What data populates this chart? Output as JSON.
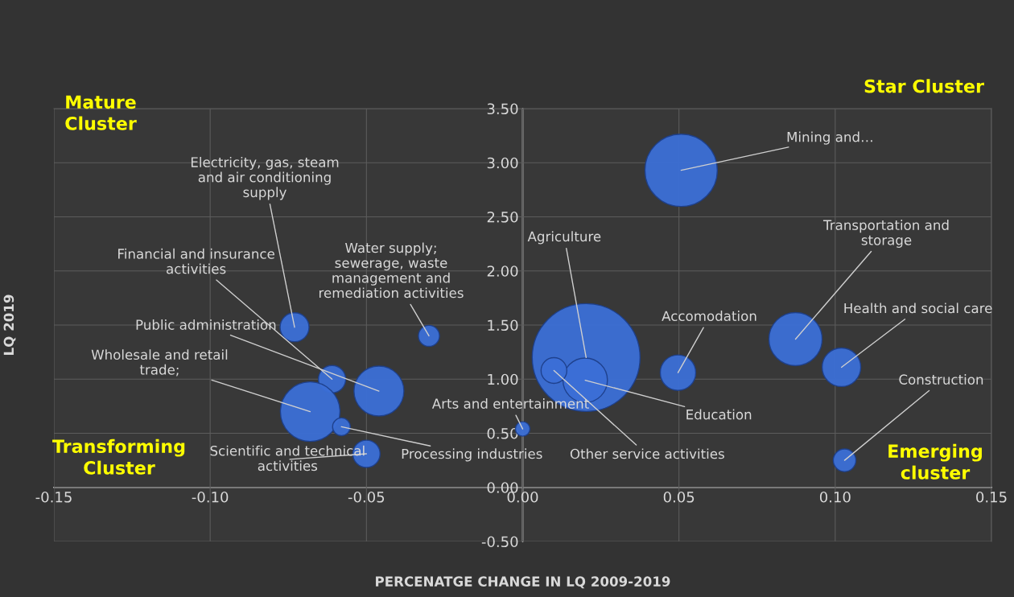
{
  "chart_data": {
    "type": "bubble",
    "xlabel": "PERCENATGE CHANGE IN LQ 2009-2019",
    "ylabel": "LQ 2019",
    "series": [
      {
        "color": "#3b6fd6",
        "x": [
          0.0507,
          0.0203,
          0.02,
          0.01,
          0.0,
          0.0497,
          0.0873,
          0.102,
          0.103,
          -0.03,
          -0.073,
          -0.061,
          -0.046,
          -0.068,
          -0.058,
          -0.05
        ],
        "values": [
          2.93,
          1.2,
          0.99,
          1.08,
          0.54,
          1.06,
          1.37,
          1.11,
          0.25,
          1.4,
          1.48,
          1.0,
          0.89,
          0.7,
          0.56,
          0.31
        ],
        "sizes": [
          0.45,
          1,
          0.17,
          0.057,
          0.018,
          0.108,
          0.243,
          0.128,
          0.044,
          0.038,
          0.072,
          0.064,
          0.214,
          0.305,
          0.027,
          0.064
        ]
      }
    ],
    "annotations": [
      {
        "text": "Mining and…",
        "x": 0.0507,
        "y": 2.93
      },
      {
        "text": "Agriculture",
        "x": 0.0203,
        "y": 1.2
      },
      {
        "text": "Education",
        "x": 0.02,
        "y": 0.99
      },
      {
        "text": "Other service activities",
        "x": 0.01,
        "y": 1.08
      },
      {
        "text": "Arts and entertainment",
        "x": 0.0,
        "y": 0.54
      },
      {
        "text": "Accomodation",
        "x": 0.0497,
        "y": 1.06
      },
      {
        "text": "Transportation and\nstorage",
        "x": 0.0873,
        "y": 1.37
      },
      {
        "text": "Health and social care",
        "x": 0.102,
        "y": 1.11
      },
      {
        "text": "Construction",
        "x": 0.103,
        "y": 0.25
      },
      {
        "text": "Water supply;\nsewerage, waste\nmanagement and\nremediation activities",
        "x": -0.03,
        "y": 1.4
      },
      {
        "text": "Electricity, gas, steam\nand air conditioning\nsupply",
        "x": -0.073,
        "y": 1.48
      },
      {
        "text": "Financial and insurance\nactivities",
        "x": -0.061,
        "y": 1.0
      },
      {
        "text": "Public administration",
        "x": -0.046,
        "y": 0.89
      },
      {
        "text": "Wholesale and retail\ntrade;",
        "x": -0.068,
        "y": 0.7
      },
      {
        "text": "Processing industries",
        "x": -0.058,
        "y": 0.56
      },
      {
        "text": "Scientific and technical\nactivities",
        "x": -0.05,
        "y": 0.31
      },
      "Mature\nCluster",
      "Star Cluster",
      "Transforming\nCluster",
      "Emerging\ncluster"
    ],
    "xlim": [
      -0.15,
      0.15
    ],
    "ylim": [
      -0.5,
      3.5
    ],
    "xticks": [
      -0.15,
      {
        "value": -0.1,
        "label": "-0.10"
      },
      -0.05,
      {
        "value": 0,
        "label": "0.00"
      },
      0.05,
      {
        "value": 0.1,
        "label": "0.10"
      },
      0.15
    ],
    "yticks": [
      {
        "value": -0.5,
        "label": "-0.50"
      },
      {
        "value": 0,
        "label": "0.00"
      },
      {
        "value": 0.5,
        "label": "0.50"
      },
      {
        "value": 1,
        "label": "1.00"
      },
      {
        "value": 1.5,
        "label": "1.50"
      },
      {
        "value": 2,
        "label": "2.00"
      },
      {
        "value": 2.5,
        "label": "2.50"
      },
      {
        "value": 3,
        "label": "3.00"
      },
      {
        "value": 3.5,
        "label": "3.50"
      }
    ],
    "grid": true
  }
}
